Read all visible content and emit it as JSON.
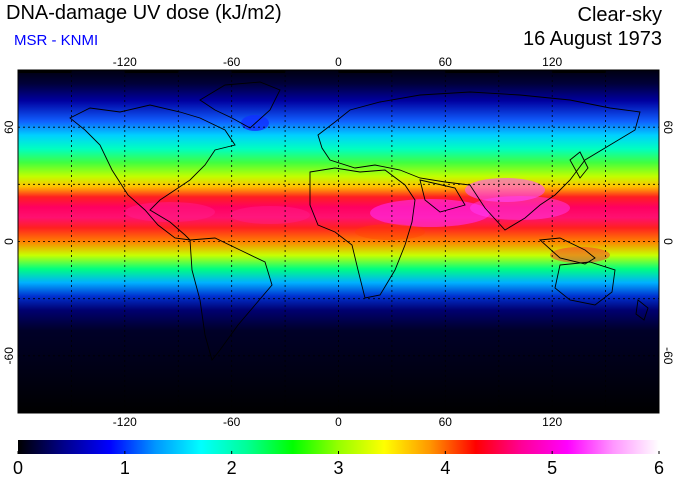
{
  "header": {
    "title": "DNA-damage UV dose (kJ/m2)",
    "source": "MSR - KNMI",
    "sky_condition": "Clear-sky",
    "date": "16 August 1973"
  },
  "map": {
    "projection": "equirectangular",
    "lon_range": [
      -180,
      180
    ],
    "lat_range": [
      -90,
      90
    ],
    "grid_spacing_deg": 30,
    "lon_tick_labels": [
      "-120",
      "-60",
      "0",
      "60",
      "120"
    ],
    "lat_tick_labels_left": [
      "60",
      "0",
      "-60"
    ],
    "lat_tick_labels_right": [
      "60",
      "0",
      "-60"
    ]
  },
  "colorbar": {
    "min": 0,
    "max": 6,
    "tick_labels": [
      "0",
      "1",
      "2",
      "3",
      "4",
      "5",
      "6"
    ],
    "colors": [
      "#000000",
      "#00008b",
      "#0000ff",
      "#0096ff",
      "#00ffff",
      "#00ff96",
      "#00ff00",
      "#96ff00",
      "#ffff00",
      "#ff9600",
      "#ff0000",
      "#ff0096",
      "#ff00ff",
      "#ff96ff",
      "#ffffff"
    ]
  }
}
